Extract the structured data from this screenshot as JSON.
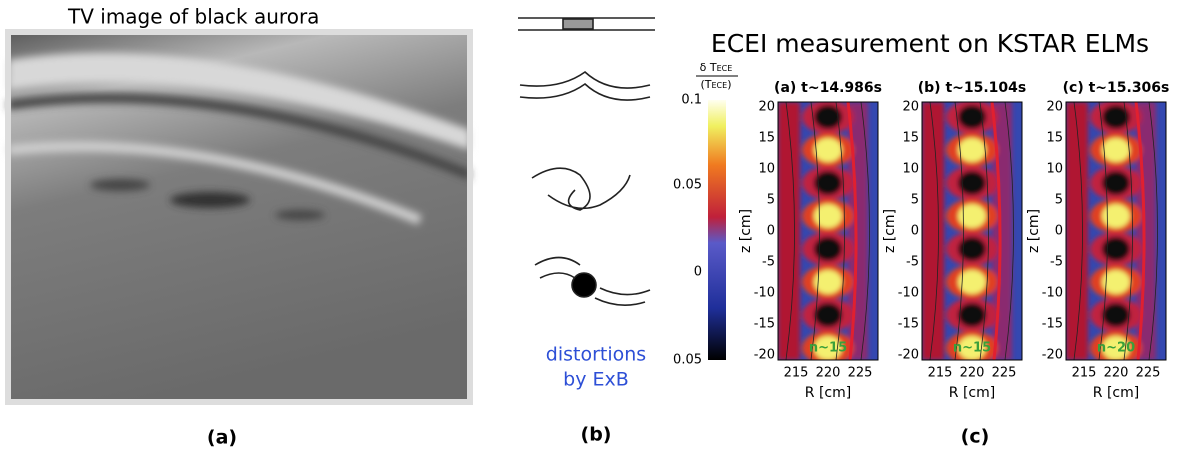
{
  "left": {
    "title": "TV image of black aurora",
    "label": "(a)"
  },
  "middle": {
    "caption": [
      "distortions",
      "by ExB"
    ],
    "label": "(b)"
  },
  "right": {
    "title": "ECEI measurement on KSTAR ELMs",
    "label": "(c)",
    "colorbar": {
      "numerator": "δ T",
      "denominator": "(T",
      "denominator_close": ")",
      "sub": "ECE",
      "ticks": [
        "0.1",
        "0.05",
        "0",
        "0.05"
      ]
    },
    "yticks": [
      "20",
      "15",
      "10",
      "5",
      "0",
      "-5",
      "-10",
      "-15",
      "-20"
    ],
    "xticks": [
      "215",
      "220",
      "225"
    ],
    "xlabel": "R [cm]",
    "ylabel": "z [cm]",
    "panels": [
      {
        "title": "(a) t~14.986s",
        "mode": "n~15"
      },
      {
        "title": "(b) t~15.104s",
        "mode": "n~15"
      },
      {
        "title": "(c) t~15.306s",
        "mode": "n~20"
      }
    ]
  }
}
